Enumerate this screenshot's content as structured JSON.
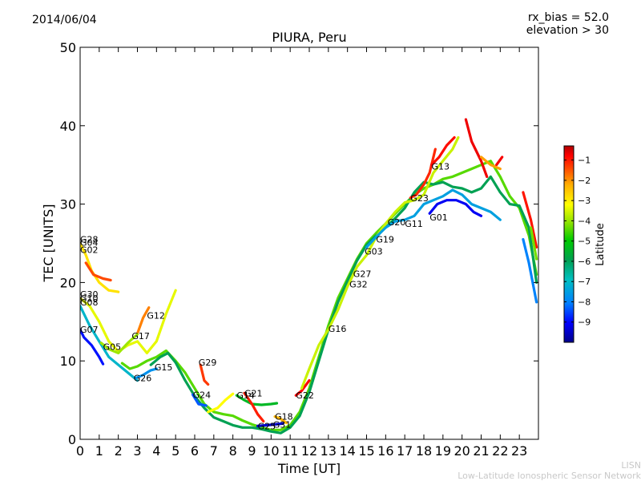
{
  "header": {
    "date": "2014/06/04",
    "rx_bias": "rx_bias = 52.0",
    "elevation": "elevation > 30",
    "title": "PIURA, Peru"
  },
  "footer": {
    "org_short": "LISN",
    "org_long": "Low-Latitude Ionospheric Sensor Network"
  },
  "chart_data": {
    "type": "scatter",
    "title": "PIURA, Peru",
    "xlabel": "Time [UT]",
    "ylabel": "TEC [UNITS]",
    "xlim": [
      0,
      24
    ],
    "ylim": [
      0,
      50
    ],
    "xticks": [
      0,
      1,
      2,
      3,
      4,
      5,
      6,
      7,
      8,
      9,
      10,
      11,
      12,
      13,
      14,
      15,
      16,
      17,
      18,
      19,
      20,
      21,
      22,
      23
    ],
    "yticks": [
      0,
      10,
      20,
      30,
      40,
      50
    ],
    "grid": false,
    "colorbar": {
      "label": "Latitude",
      "ticks": [
        -1,
        -2,
        -3,
        -4,
        -5,
        -6,
        -7,
        -8,
        -9
      ],
      "range": [
        -10,
        -0.3
      ],
      "colors": [
        "#00008b",
        "#0000ff",
        "#0080ff",
        "#00c0c0",
        "#00a050",
        "#00cc00",
        "#80e000",
        "#ffff00",
        "#ffb000",
        "#ff5000",
        "#ff0000",
        "#b00000"
      ]
    },
    "satellite_labels": [
      {
        "name": "G28",
        "x": 0.0,
        "y": 25.5
      },
      {
        "name": "G04",
        "x": 0.0,
        "y": 25.1
      },
      {
        "name": "G02",
        "x": 0.0,
        "y": 24.2
      },
      {
        "name": "G30",
        "x": 0.0,
        "y": 18.5
      },
      {
        "name": "G10",
        "x": 0.0,
        "y": 18.0
      },
      {
        "name": "G08",
        "x": 0.0,
        "y": 17.5
      },
      {
        "name": "G07",
        "x": 0.0,
        "y": 14.0
      },
      {
        "name": "G05",
        "x": 1.2,
        "y": 11.8
      },
      {
        "name": "G17",
        "x": 2.7,
        "y": 13.2
      },
      {
        "name": "G12",
        "x": 3.5,
        "y": 15.8
      },
      {
        "name": "G26",
        "x": 2.8,
        "y": 7.8
      },
      {
        "name": "G15",
        "x": 3.9,
        "y": 9.2
      },
      {
        "name": "G29",
        "x": 6.2,
        "y": 9.8
      },
      {
        "name": "G24",
        "x": 5.9,
        "y": 5.7
      },
      {
        "name": "G14",
        "x": 8.2,
        "y": 5.6
      },
      {
        "name": "G21",
        "x": 8.6,
        "y": 5.9
      },
      {
        "name": "G18",
        "x": 10.2,
        "y": 2.9
      },
      {
        "name": "G25",
        "x": 9.3,
        "y": 1.7
      },
      {
        "name": "G31",
        "x": 10.1,
        "y": 1.9
      },
      {
        "name": "G22",
        "x": 11.3,
        "y": 5.6
      },
      {
        "name": "G16",
        "x": 13.0,
        "y": 14.1
      },
      {
        "name": "G27",
        "x": 14.3,
        "y": 21.1
      },
      {
        "name": "G32",
        "x": 14.1,
        "y": 19.8
      },
      {
        "name": "G03",
        "x": 14.9,
        "y": 24.0
      },
      {
        "name": "G19",
        "x": 15.5,
        "y": 25.5
      },
      {
        "name": "G20",
        "x": 16.1,
        "y": 27.7
      },
      {
        "name": "G11",
        "x": 17.0,
        "y": 27.5
      },
      {
        "name": "G23",
        "x": 17.3,
        "y": 30.8
      },
      {
        "name": "G01",
        "x": 18.3,
        "y": 28.3
      },
      {
        "name": "G13",
        "x": 18.4,
        "y": 34.8
      }
    ],
    "tracks": [
      {
        "lat": -5.0,
        "pts": [
          [
            2.2,
            9.7
          ],
          [
            2.6,
            9.0
          ],
          [
            3.0,
            9.3
          ],
          [
            3.5,
            10.0
          ],
          [
            4.0,
            10.5
          ],
          [
            4.5,
            11.3
          ],
          [
            5.0,
            10.0
          ],
          [
            5.5,
            8.5
          ],
          [
            6.0,
            6.5
          ],
          [
            6.5,
            4.5
          ],
          [
            7.0,
            3.5
          ],
          [
            7.5,
            3.2
          ],
          [
            8.0,
            3.0
          ],
          [
            8.5,
            2.4
          ],
          [
            9.0,
            1.9
          ],
          [
            9.5,
            1.5
          ],
          [
            10.0,
            1.2
          ],
          [
            10.5,
            1.2
          ],
          [
            11.0,
            1.8
          ],
          [
            11.5,
            3.5
          ],
          [
            12.0,
            6.5
          ],
          [
            12.5,
            10.5
          ],
          [
            13.0,
            14.5
          ],
          [
            13.5,
            18.0
          ],
          [
            14.0,
            20.5
          ],
          [
            14.5,
            23.0
          ],
          [
            15.0,
            25.0
          ],
          [
            15.5,
            26.3
          ],
          [
            16.0,
            27.5
          ],
          [
            16.5,
            28.8
          ],
          [
            17.0,
            30.0
          ],
          [
            17.5,
            31.2
          ],
          [
            18.0,
            32.0
          ],
          [
            18.5,
            32.5
          ],
          [
            19.0,
            33.2
          ],
          [
            19.5,
            33.5
          ],
          [
            20.0,
            34.0
          ],
          [
            20.5,
            34.5
          ],
          [
            21.0,
            35.0
          ],
          [
            21.5,
            35.5
          ],
          [
            22.0,
            33.5
          ],
          [
            22.5,
            31.0
          ],
          [
            23.0,
            29.5
          ],
          [
            23.5,
            26.0
          ],
          [
            23.9,
            21.0
          ]
        ]
      },
      {
        "lat": -6.5,
        "pts": [
          [
            3.7,
            9.5
          ],
          [
            4.2,
            10.5
          ],
          [
            4.6,
            11.0
          ],
          [
            5.0,
            9.8
          ],
          [
            5.5,
            7.5
          ],
          [
            6.0,
            5.5
          ],
          [
            6.5,
            4.0
          ],
          [
            7.0,
            2.8
          ],
          [
            7.5,
            2.3
          ],
          [
            8.0,
            1.8
          ],
          [
            8.5,
            1.5
          ],
          [
            9.0,
            1.5
          ],
          [
            9.5,
            1.3
          ],
          [
            10.0,
            1.0
          ],
          [
            10.5,
            0.8
          ],
          [
            11.0,
            1.5
          ],
          [
            11.5,
            3.0
          ],
          [
            12.0,
            6.0
          ],
          [
            12.5,
            10.0
          ],
          [
            13.0,
            14.0
          ],
          [
            13.5,
            17.5
          ],
          [
            14.0,
            20.2
          ],
          [
            14.5,
            22.8
          ],
          [
            15.0,
            24.8
          ],
          [
            15.5,
            26.0
          ],
          [
            16.0,
            27.0
          ],
          [
            16.5,
            28.2
          ],
          [
            17.0,
            29.5
          ],
          [
            17.5,
            31.5
          ],
          [
            18.0,
            32.8
          ],
          [
            18.5,
            32.5
          ],
          [
            19.0,
            32.8
          ],
          [
            19.5,
            32.2
          ],
          [
            20.0,
            32.0
          ],
          [
            20.5,
            31.5
          ],
          [
            21.0,
            32.0
          ],
          [
            21.5,
            33.5
          ],
          [
            22.0,
            31.5
          ],
          [
            22.5,
            30.0
          ],
          [
            23.0,
            29.8
          ],
          [
            23.5,
            27.0
          ],
          [
            23.9,
            20.0
          ]
        ]
      },
      {
        "lat": -3.5,
        "pts": [
          [
            0.0,
            25.0
          ],
          [
            0.3,
            23.5
          ],
          [
            0.6,
            21.5
          ],
          [
            1.0,
            20.0
          ],
          [
            1.5,
            19.0
          ],
          [
            2.0,
            18.8
          ]
        ]
      },
      {
        "lat": -2.0,
        "pts": [
          [
            0.3,
            22.5
          ],
          [
            0.7,
            21.0
          ],
          [
            1.2,
            20.5
          ],
          [
            1.6,
            20.3
          ]
        ]
      },
      {
        "lat": -4.0,
        "pts": [
          [
            0.0,
            18.0
          ],
          [
            0.5,
            17.0
          ],
          [
            1.0,
            15.0
          ],
          [
            1.5,
            12.5
          ],
          [
            2.0,
            11.2
          ],
          [
            2.5,
            12.0
          ],
          [
            3.0,
            12.5
          ],
          [
            3.5,
            11.0
          ],
          [
            4.0,
            12.5
          ],
          [
            4.5,
            16.0
          ],
          [
            5.0,
            19.0
          ]
        ]
      },
      {
        "lat": -2.5,
        "pts": [
          [
            3.0,
            13.5
          ],
          [
            3.3,
            15.5
          ],
          [
            3.6,
            16.8
          ]
        ]
      },
      {
        "lat": -7.5,
        "pts": [
          [
            0.0,
            17.0
          ],
          [
            0.5,
            14.5
          ],
          [
            1.0,
            12.5
          ],
          [
            1.5,
            10.5
          ],
          [
            2.0,
            9.5
          ],
          [
            2.5,
            8.5
          ],
          [
            3.0,
            7.5
          ]
        ]
      },
      {
        "lat": -9.0,
        "pts": [
          [
            0.0,
            14.0
          ],
          [
            0.2,
            13.0
          ],
          [
            0.6,
            12.0
          ],
          [
            1.0,
            10.5
          ],
          [
            1.2,
            9.6
          ]
        ]
      },
      {
        "lat": -4.5,
        "pts": [
          [
            1.1,
            12.3
          ],
          [
            1.5,
            11.5
          ],
          [
            2.0,
            11.0
          ],
          [
            2.5,
            12.3
          ],
          [
            3.0,
            13.4
          ]
        ]
      },
      {
        "lat": -8.0,
        "pts": [
          [
            2.9,
            7.8
          ],
          [
            3.3,
            8.2
          ],
          [
            3.7,
            8.8
          ],
          [
            4.0,
            9.0
          ]
        ]
      },
      {
        "lat": -1.8,
        "pts": [
          [
            6.3,
            9.5
          ],
          [
            6.5,
            7.5
          ],
          [
            6.7,
            7.0
          ]
        ]
      },
      {
        "lat": -8.5,
        "pts": [
          [
            5.9,
            5.7
          ],
          [
            6.2,
            4.5
          ],
          [
            6.6,
            4.3
          ]
        ]
      },
      {
        "lat": -3.8,
        "pts": [
          [
            6.7,
            3.5
          ],
          [
            7.2,
            4.0
          ],
          [
            7.6,
            5.0
          ],
          [
            8.0,
            5.8
          ]
        ]
      },
      {
        "lat": -6.0,
        "pts": [
          [
            8.2,
            5.6
          ],
          [
            8.6,
            5.0
          ],
          [
            9.0,
            4.5
          ],
          [
            9.5,
            4.4
          ],
          [
            10.0,
            4.5
          ],
          [
            10.3,
            4.6
          ]
        ]
      },
      {
        "lat": -1.5,
        "pts": [
          [
            8.6,
            5.9
          ],
          [
            9.0,
            4.5
          ],
          [
            9.3,
            3.2
          ],
          [
            9.6,
            2.3
          ]
        ]
      },
      {
        "lat": -9.5,
        "pts": [
          [
            9.3,
            1.7
          ],
          [
            9.8,
            1.8
          ],
          [
            10.2,
            1.9
          ],
          [
            10.6,
            2.0
          ]
        ]
      },
      {
        "lat": -3.0,
        "pts": [
          [
            10.2,
            2.9
          ],
          [
            10.5,
            2.6
          ],
          [
            10.8,
            2.1
          ]
        ]
      },
      {
        "lat": -1.2,
        "pts": [
          [
            11.3,
            5.6
          ],
          [
            11.6,
            6.2
          ],
          [
            12.0,
            7.5
          ]
        ]
      },
      {
        "lat": -4.2,
        "pts": [
          [
            11.6,
            6.5
          ],
          [
            12.0,
            9.0
          ],
          [
            12.5,
            12.0
          ],
          [
            13.0,
            14.0
          ],
          [
            13.5,
            16.5
          ],
          [
            14.0,
            19.5
          ],
          [
            14.5,
            22.0
          ],
          [
            15.0,
            23.5
          ],
          [
            15.5,
            25.8
          ],
          [
            16.0,
            27.5
          ],
          [
            16.5,
            29.0
          ],
          [
            17.0,
            30.2
          ],
          [
            17.5,
            30.5
          ],
          [
            18.0,
            31.2
          ],
          [
            18.5,
            34.0
          ],
          [
            19.0,
            35.5
          ],
          [
            19.5,
            37.0
          ],
          [
            19.8,
            38.5
          ]
        ]
      },
      {
        "lat": -1.0,
        "pts": [
          [
            20.2,
            40.8
          ],
          [
            20.5,
            38.0
          ],
          [
            20.8,
            36.5
          ],
          [
            21.0,
            35.5
          ],
          [
            21.3,
            33.5
          ]
        ]
      },
      {
        "lat": -7.8,
        "pts": [
          [
            15.0,
            24.5
          ],
          [
            15.5,
            25.8
          ],
          [
            16.0,
            27.0
          ],
          [
            16.5,
            27.8
          ],
          [
            17.0,
            28.0
          ],
          [
            17.5,
            28.5
          ],
          [
            18.0,
            30.0
          ],
          [
            18.5,
            30.5
          ],
          [
            19.0,
            31.0
          ],
          [
            19.5,
            31.8
          ],
          [
            20.0,
            31.2
          ],
          [
            20.5,
            30.0
          ],
          [
            21.0,
            29.5
          ],
          [
            21.5,
            29.0
          ],
          [
            22.0,
            28.0
          ]
        ]
      },
      {
        "lat": -9.2,
        "pts": [
          [
            18.3,
            28.8
          ],
          [
            18.7,
            30.0
          ],
          [
            19.2,
            30.5
          ],
          [
            19.7,
            30.5
          ],
          [
            20.2,
            30.0
          ],
          [
            20.6,
            29.0
          ],
          [
            21.0,
            28.5
          ]
        ]
      },
      {
        "lat": -1.6,
        "pts": [
          [
            17.3,
            30.8
          ],
          [
            17.6,
            31.2
          ],
          [
            18.0,
            32.5
          ],
          [
            18.3,
            34.0
          ],
          [
            18.6,
            37.0
          ]
        ]
      },
      {
        "lat": -1.3,
        "pts": [
          [
            18.4,
            35.0
          ],
          [
            18.8,
            36.0
          ],
          [
            19.2,
            37.5
          ],
          [
            19.6,
            38.5
          ]
        ]
      },
      {
        "lat": -1.1,
        "pts": [
          [
            21.8,
            35.0
          ],
          [
            22.1,
            36.0
          ]
        ]
      },
      {
        "lat": -2.8,
        "pts": [
          [
            21.0,
            36.0
          ],
          [
            21.5,
            35.0
          ],
          [
            22.0,
            34.5
          ]
        ]
      },
      {
        "lat": -8.2,
        "pts": [
          [
            23.2,
            25.5
          ],
          [
            23.5,
            22.5
          ],
          [
            23.9,
            17.5
          ]
        ]
      },
      {
        "lat": -1.4,
        "pts": [
          [
            23.2,
            31.5
          ],
          [
            23.6,
            28.0
          ],
          [
            23.9,
            24.5
          ]
        ]
      },
      {
        "lat": -4.8,
        "pts": [
          [
            23.6,
            27.0
          ],
          [
            23.9,
            23.0
          ]
        ]
      }
    ]
  }
}
